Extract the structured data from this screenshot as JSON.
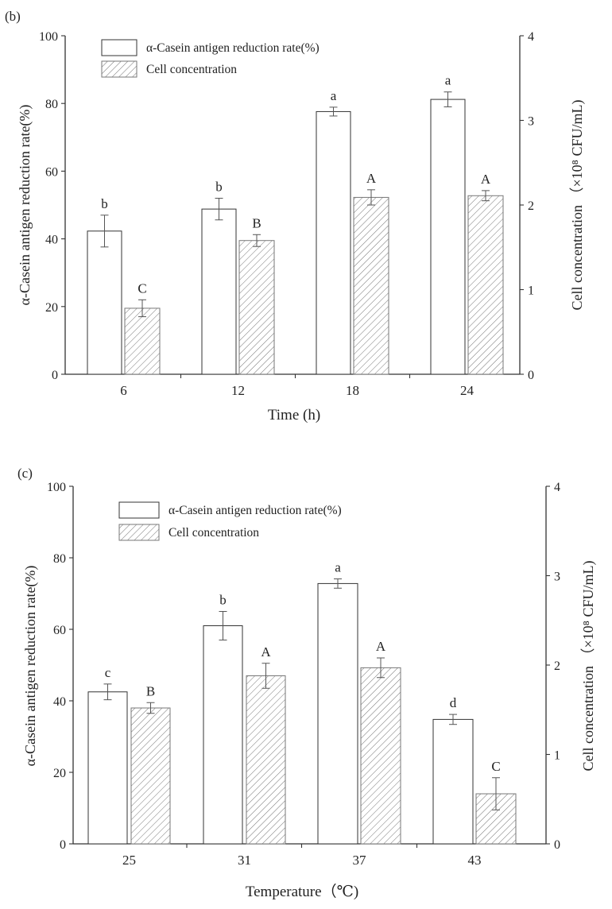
{
  "chart_data": [
    {
      "type": "bar",
      "panel_label": "(b)",
      "xlabel": "Time (h)",
      "ylabel": "α-Casein antigen reduction rate(%)",
      "y2label": "Cell concentration （×10⁸ CFU/mL)",
      "categories": [
        "6",
        "12",
        "18",
        "24"
      ],
      "ylim": [
        0,
        100
      ],
      "y2lim": [
        0,
        4
      ],
      "yticks": [
        0,
        20,
        40,
        60,
        80,
        100
      ],
      "y2ticks": [
        0,
        1,
        2,
        3,
        4
      ],
      "legend_position": "top-left",
      "grid": false,
      "series": [
        {
          "name": "α-Casein antigen reduction rate(%)",
          "axis": "left",
          "fill": "white",
          "values": [
            42.3,
            48.8,
            77.6,
            81.2
          ],
          "errors": [
            4.7,
            3.2,
            1.3,
            2.2
          ],
          "letters": [
            "b",
            "b",
            "a",
            "a"
          ]
        },
        {
          "name": "Cell concentration",
          "axis": "right",
          "fill": "hatched",
          "values": [
            0.78,
            1.58,
            2.09,
            2.11
          ],
          "errors": [
            0.1,
            0.07,
            0.09,
            0.06
          ],
          "letters": [
            "C",
            "B",
            "A",
            "A"
          ]
        }
      ]
    },
    {
      "type": "bar",
      "panel_label": "(c)",
      "xlabel": "Temperature（℃)",
      "ylabel": "α-Casein antigen reduction rate(%)",
      "y2label": "Cell concentration （×10⁸ CFU/mL)",
      "categories": [
        "25",
        "31",
        "37",
        "43"
      ],
      "ylim": [
        0,
        100
      ],
      "y2lim": [
        0,
        4
      ],
      "yticks": [
        0,
        20,
        40,
        60,
        80,
        100
      ],
      "y2ticks": [
        0,
        1,
        2,
        3,
        4
      ],
      "legend_position": "top-left",
      "grid": false,
      "series": [
        {
          "name": "α-Casein antigen reduction rate(%)",
          "axis": "left",
          "fill": "white",
          "values": [
            42.5,
            61.0,
            72.8,
            34.8
          ],
          "errors": [
            2.2,
            4.0,
            1.3,
            1.4
          ],
          "letters": [
            "c",
            "b",
            "a",
            "d"
          ]
        },
        {
          "name": "Cell concentration",
          "axis": "right",
          "fill": "hatched",
          "values": [
            1.52,
            1.88,
            1.97,
            0.56
          ],
          "errors": [
            0.06,
            0.14,
            0.11,
            0.18
          ],
          "letters": [
            "B",
            "A",
            "A",
            "C"
          ]
        }
      ]
    }
  ]
}
